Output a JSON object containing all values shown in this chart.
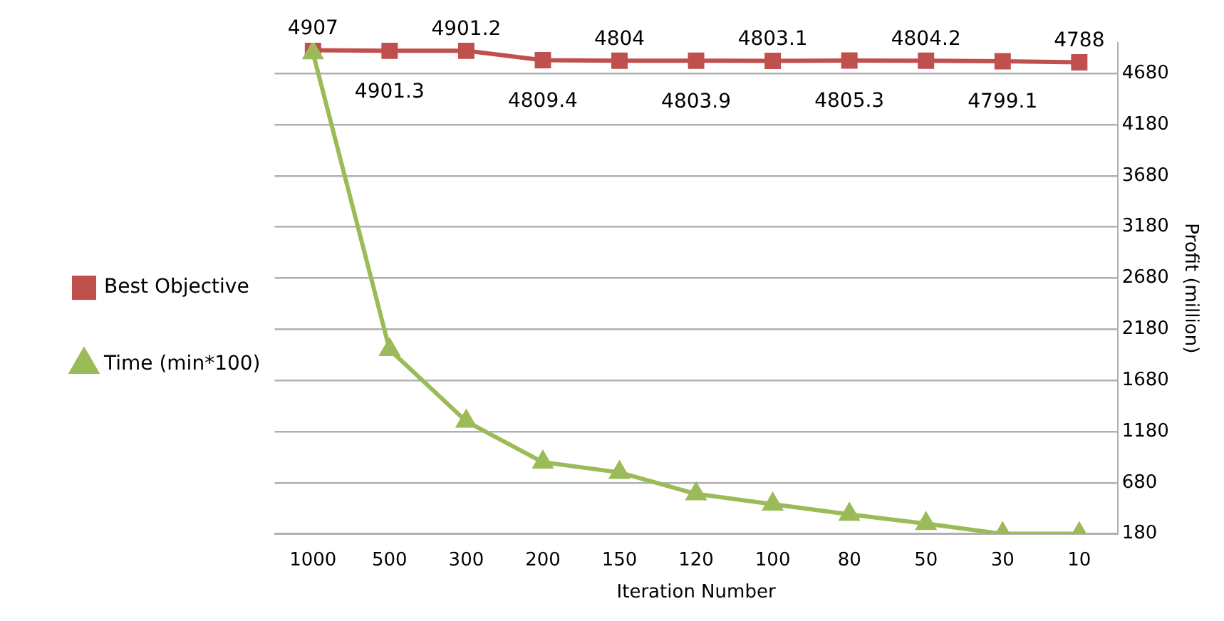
{
  "chart_data": {
    "type": "line",
    "xlabel": "Iteration Number",
    "y2label": "Profit (million)",
    "categories": [
      "1000",
      "500",
      "300",
      "200",
      "150",
      "120",
      "100",
      "80",
      "50",
      "30",
      "10"
    ],
    "series": [
      {
        "name": "Best Objective",
        "color": "#c0504d",
        "marker": "square",
        "values": [
          4907,
          4901.3,
          4901.2,
          4809.4,
          4804,
          4803.9,
          4803.1,
          4805.3,
          4804.2,
          4799.1,
          4788
        ],
        "axis": "y2",
        "data_labels": true
      },
      {
        "name": "Time (min*100)",
        "color": "#9bbb59",
        "marker": "triangle",
        "values": [
          4880,
          1980,
          1280,
          880,
          780,
          570,
          470,
          370,
          280,
          180,
          180
        ],
        "axis": "y2"
      }
    ],
    "y2lim": [
      180,
      4980
    ],
    "y2ticks": [
      180,
      680,
      1180,
      1680,
      2180,
      2680,
      3180,
      3680,
      4180,
      4680
    ],
    "grid": "y",
    "legend": "left",
    "line_style": "solid"
  }
}
